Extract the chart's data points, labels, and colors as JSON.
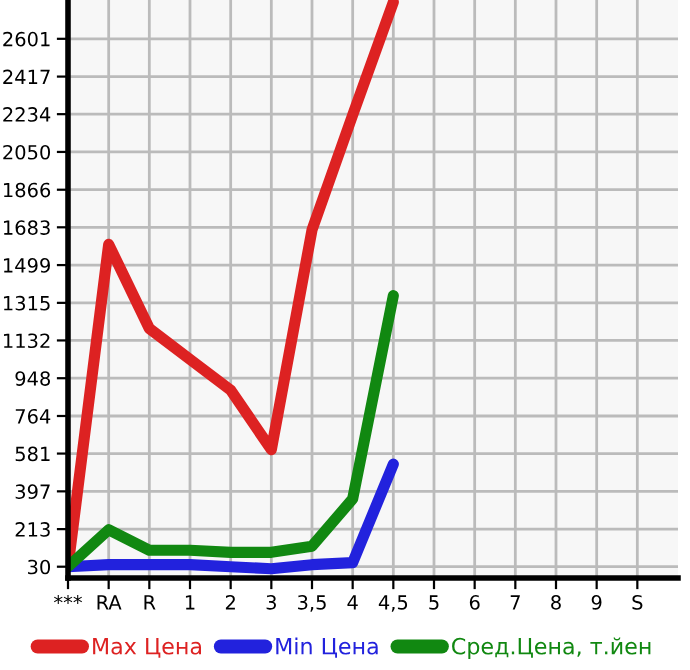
{
  "chart_data": {
    "type": "line",
    "categories": [
      "***",
      "RA",
      "R",
      "1",
      "2",
      "3",
      "3,5",
      "4",
      "4,5",
      "5",
      "6",
      "7",
      "8",
      "9",
      "S"
    ],
    "series": [
      {
        "name": "Max Цена",
        "color": "#dd2222",
        "values": [
          30,
          1600,
          1190,
          1040,
          890,
          600,
          1670,
          2230,
          2780,
          null,
          null,
          null,
          null,
          null,
          null
        ]
      },
      {
        "name": "Min Цена",
        "color": "#2222dd",
        "values": [
          30,
          40,
          40,
          40,
          30,
          20,
          40,
          50,
          530,
          null,
          null,
          null,
          null,
          null,
          null
        ]
      },
      {
        "name": "Сред.Цена, т.йен",
        "color": "#118811",
        "values": [
          30,
          210,
          110,
          110,
          100,
          100,
          130,
          360,
          1350,
          null,
          null,
          null,
          null,
          null,
          null
        ]
      }
    ],
    "ylim": [
      -25,
      2790
    ],
    "yticks": [
      30,
      213,
      397,
      581,
      764,
      948,
      1132,
      1315,
      1499,
      1683,
      1866,
      2050,
      2234,
      2417,
      2601
    ],
    "grid": true,
    "legend": "bottom",
    "marker": "none",
    "line_style": "solid"
  }
}
